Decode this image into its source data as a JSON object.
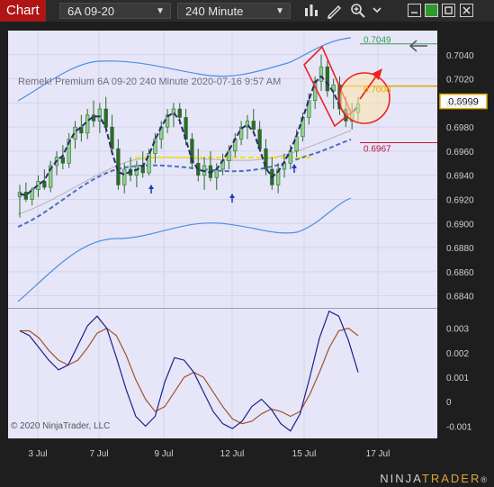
{
  "toolbar": {
    "tab_label": "Chart",
    "instrument": "6A 09-20",
    "interval": "240 Minute"
  },
  "chart_title": "Remek!  Premium  6A 09-20  240 Minute  2020-07-16 9:57 AM",
  "copyright": "© 2020 NinjaTrader, LLC",
  "brand": {
    "prefix": "NINJA",
    "suffix": "TRADER",
    "mark": "®"
  },
  "colors": {
    "background": "#e6e6f8",
    "bollinger": "#4a90e2",
    "candle": "#2d6a2d",
    "hma": "#2a2a6e",
    "support_line": "#f2e400",
    "target": "#3c9a5b",
    "stop": "#c0143c",
    "current": "#e0a800",
    "osc_fast": "#1f1f8a",
    "osc_slow": "#a0522d"
  },
  "price_labels": {
    "target": "0.7049",
    "entry": "0.7008",
    "current": "0.6999",
    "stop": "0.6967"
  },
  "chart_data": {
    "type": "candlestick",
    "y_ticks": [
      "0.7040",
      "0.7020",
      "0.7000",
      "0.6980",
      "0.6960",
      "0.6940",
      "0.6920",
      "0.6900",
      "0.6880",
      "0.6860",
      "0.6840"
    ],
    "x_ticks": [
      "3 Jul",
      "7 Jul",
      "9 Jul",
      "12 Jul",
      "15 Jul",
      "17 Jul"
    ],
    "osc_ticks": [
      "0.003",
      "0.002",
      "0.001",
      "0",
      "-0.001"
    ],
    "ylim": [
      0.683,
      0.706
    ],
    "osc_ylim": [
      -0.0015,
      0.0038
    ],
    "candles": [
      [
        0.6922,
        0.6932,
        0.6905,
        0.6926
      ],
      [
        0.6926,
        0.6934,
        0.6918,
        0.692
      ],
      [
        0.692,
        0.693,
        0.6915,
        0.6928
      ],
      [
        0.6928,
        0.694,
        0.6922,
        0.6935
      ],
      [
        0.6935,
        0.6945,
        0.6928,
        0.693
      ],
      [
        0.693,
        0.6952,
        0.6926,
        0.6948
      ],
      [
        0.6948,
        0.696,
        0.694,
        0.6955
      ],
      [
        0.6955,
        0.6965,
        0.6945,
        0.695
      ],
      [
        0.695,
        0.6975,
        0.6946,
        0.697
      ],
      [
        0.697,
        0.6985,
        0.6962,
        0.698
      ],
      [
        0.698,
        0.699,
        0.6968,
        0.6975
      ],
      [
        0.6975,
        0.6995,
        0.697,
        0.699
      ],
      [
        0.699,
        0.7002,
        0.698,
        0.6985
      ],
      [
        0.6985,
        0.7,
        0.6975,
        0.6995
      ],
      [
        0.6995,
        0.7005,
        0.6975,
        0.698
      ],
      [
        0.698,
        0.699,
        0.6958,
        0.6962
      ],
      [
        0.6962,
        0.697,
        0.6928,
        0.6932
      ],
      [
        0.6932,
        0.695,
        0.6925,
        0.6945
      ],
      [
        0.6945,
        0.6955,
        0.6935,
        0.694
      ],
      [
        0.694,
        0.6952,
        0.693,
        0.6948
      ],
      [
        0.6948,
        0.696,
        0.6938,
        0.6942
      ],
      [
        0.6942,
        0.6962,
        0.694,
        0.6958
      ],
      [
        0.6958,
        0.6975,
        0.695,
        0.697
      ],
      [
        0.697,
        0.6985,
        0.6962,
        0.698
      ],
      [
        0.698,
        0.6995,
        0.6975,
        0.699
      ],
      [
        0.699,
        0.7,
        0.698,
        0.6995
      ],
      [
        0.6995,
        0.7,
        0.6982,
        0.6988
      ],
      [
        0.6988,
        0.6995,
        0.6965,
        0.697
      ],
      [
        0.697,
        0.6975,
        0.6945,
        0.695
      ],
      [
        0.695,
        0.6962,
        0.6935,
        0.694
      ],
      [
        0.694,
        0.6955,
        0.6928,
        0.6948
      ],
      [
        0.6948,
        0.696,
        0.6935,
        0.6938
      ],
      [
        0.6938,
        0.695,
        0.6928,
        0.6945
      ],
      [
        0.6945,
        0.6958,
        0.694,
        0.6952
      ],
      [
        0.6952,
        0.6965,
        0.6945,
        0.696
      ],
      [
        0.696,
        0.6975,
        0.6955,
        0.697
      ],
      [
        0.697,
        0.6985,
        0.6965,
        0.698
      ],
      [
        0.698,
        0.699,
        0.697,
        0.6985
      ],
      [
        0.6985,
        0.6995,
        0.6975,
        0.6978
      ],
      [
        0.6978,
        0.6985,
        0.696,
        0.6962
      ],
      [
        0.6962,
        0.697,
        0.694,
        0.6945
      ],
      [
        0.6945,
        0.6955,
        0.6928,
        0.6932
      ],
      [
        0.6932,
        0.695,
        0.6925,
        0.6945
      ],
      [
        0.6945,
        0.6958,
        0.6938,
        0.695
      ],
      [
        0.695,
        0.6965,
        0.6945,
        0.696
      ],
      [
        0.696,
        0.6978,
        0.6955,
        0.6972
      ],
      [
        0.6972,
        0.6992,
        0.6968,
        0.6988
      ],
      [
        0.6988,
        0.7008,
        0.6982,
        0.7002
      ],
      [
        0.7002,
        0.7022,
        0.6995,
        0.7018
      ],
      [
        0.7018,
        0.704,
        0.701,
        0.703
      ],
      [
        0.703,
        0.7035,
        0.7005,
        0.701
      ],
      [
        0.701,
        0.702,
        0.6995,
        0.7015
      ],
      [
        0.7015,
        0.7022,
        0.699,
        0.6995
      ],
      [
        0.6995,
        0.7005,
        0.698,
        0.6985
      ],
      [
        0.6985,
        0.7,
        0.6978,
        0.6992
      ],
      [
        0.6992,
        0.7005,
        0.6985,
        0.6999
      ]
    ]
  }
}
